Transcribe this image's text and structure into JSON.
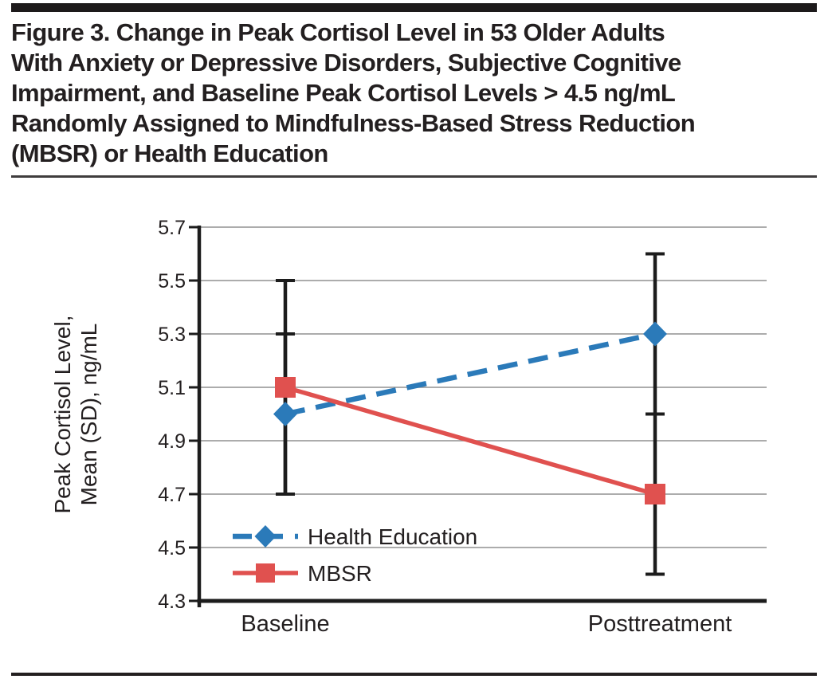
{
  "figure": {
    "title_lines": [
      "Figure 3. Change in Peak Cortisol Level in 53 Older Adults",
      "With Anxiety or Depressive Disorders, Subjective Cognitive",
      "Impairment, and Baseline Peak Cortisol Levels > 4.5 ng/mL",
      "Randomly Assigned to Mindfulness-Based Stress Reduction",
      "(MBSR) or Health Education"
    ]
  },
  "chart_data": {
    "type": "line",
    "title": "Figure 3. Change in Peak Cortisol Level in 53 Older Adults With Anxiety or Depressive Disorders, Subjective Cognitive Impairment, and Baseline Peak Cortisol Levels > 4.5 ng/mL Randomly Assigned to Mindfulness-Based Stress Reduction (MBSR) or Health Education",
    "xlabel": "",
    "ylabel": "Peak Cortisol Level, Mean (SD), ng/mL",
    "ylabel_lines": [
      "Peak Cortisol Level,",
      "Mean (SD), ng/mL"
    ],
    "categories": [
      "Baseline",
      "Posttreatment"
    ],
    "ylim": [
      4.3,
      5.7
    ],
    "y_ticks": [
      5.7,
      5.5,
      5.3,
      5.1,
      4.9,
      4.7,
      4.5,
      4.3
    ],
    "grid": true,
    "legend_position": "lower-left",
    "series": [
      {
        "name": "Health Education",
        "color": "#2b7ab9",
        "line_style": "dashed",
        "marker": "diamond",
        "values": [
          5.0,
          5.3
        ],
        "error_low": [
          4.7,
          5.0
        ],
        "error_high": [
          5.3,
          5.6
        ]
      },
      {
        "name": "MBSR",
        "color": "#e0514f",
        "line_style": "solid",
        "marker": "square",
        "values": [
          5.1,
          4.7
        ],
        "error_low": [
          4.7,
          4.4
        ],
        "error_high": [
          5.5,
          5.0
        ]
      }
    ],
    "error_bar_color": "#1c1c1c",
    "gridline_color": "#909090",
    "axis_color": "#1c1c1c",
    "text_color": "#231f20"
  }
}
